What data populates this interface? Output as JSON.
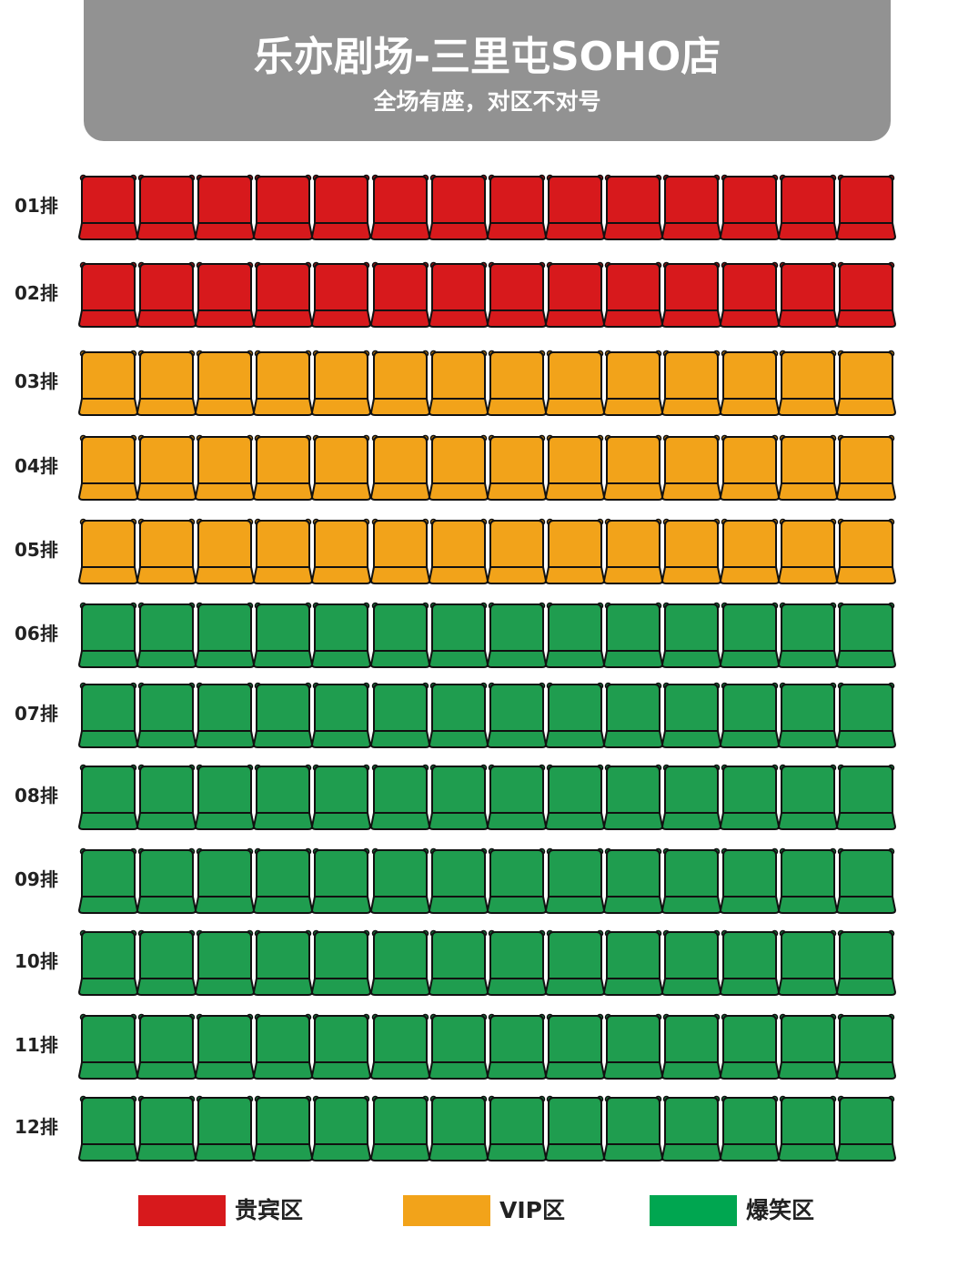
{
  "header": {
    "title": "乐亦剧场-三里屯SOHO店",
    "subtitle": "全场有座，对区不对号"
  },
  "zones": {
    "guibin": {
      "label": "贵宾区",
      "color": "#D7191C"
    },
    "vip": {
      "label": "VIP区",
      "color": "#F2A31A"
    },
    "baoxiao": {
      "label": "爆笑区",
      "color": "#1F9D4F"
    }
  },
  "legend": [
    {
      "label": "贵宾区",
      "color": "#D7191C"
    },
    {
      "label": "VIP区",
      "color": "#F2A31A"
    },
    {
      "label": "爆笑区",
      "color": "#00A650"
    }
  ],
  "seats_per_row": 14,
  "rows": [
    {
      "label": "01排",
      "zone": "guibin"
    },
    {
      "label": "02排",
      "zone": "guibin"
    },
    {
      "label": "03排",
      "zone": "vip"
    },
    {
      "label": "04排",
      "zone": "vip"
    },
    {
      "label": "05排",
      "zone": "vip"
    },
    {
      "label": "06排",
      "zone": "baoxiao"
    },
    {
      "label": "07排",
      "zone": "baoxiao"
    },
    {
      "label": "08排",
      "zone": "baoxiao"
    },
    {
      "label": "09排",
      "zone": "baoxiao"
    },
    {
      "label": "10排",
      "zone": "baoxiao"
    },
    {
      "label": "11排",
      "zone": "baoxiao"
    },
    {
      "label": "12排",
      "zone": "baoxiao"
    }
  ]
}
